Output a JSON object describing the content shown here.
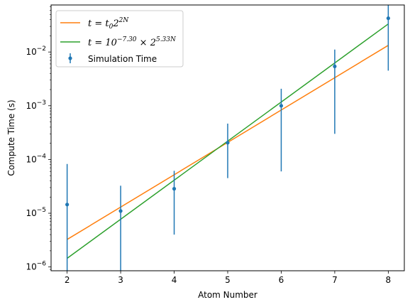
{
  "chart_data": {
    "type": "scatter",
    "xlabel": "Atom Number",
    "ylabel": "Compute Time (s)",
    "x_ticks": [
      "2",
      "3",
      "4",
      "5",
      "6",
      "7",
      "8"
    ],
    "y_scale": "log",
    "y_ticks": [
      {
        "base": "10",
        "exp": "−6"
      },
      {
        "base": "10",
        "exp": "−5"
      },
      {
        "base": "10",
        "exp": "−4"
      },
      {
        "base": "10",
        "exp": "−3"
      },
      {
        "base": "10",
        "exp": "−2"
      }
    ],
    "xlim": [
      1.7,
      8.3
    ],
    "ylim": [
      8.5e-07,
      0.075
    ],
    "grid": false,
    "legend_position": "upper-left",
    "series": [
      {
        "kind": "errorbar",
        "name": "Simulation Time",
        "color": "#1f77b4",
        "points": [
          {
            "x": 2,
            "y": 1.45e-05,
            "yerr_low": 1.45e-05,
            "yerr_high": 6.8e-05
          },
          {
            "x": 3,
            "y": 1.1e-05,
            "yerr_low": 1.1e-05,
            "yerr_high": 2.15e-05
          },
          {
            "x": 4,
            "y": 2.85e-05,
            "yerr_low": 2.45e-05,
            "yerr_high": 3.3e-05
          },
          {
            "x": 5,
            "y": 0.000205,
            "yerr_low": 0.00016,
            "yerr_high": 0.00026
          },
          {
            "x": 6,
            "y": 0.001,
            "yerr_low": 0.00094,
            "yerr_high": 0.00107
          },
          {
            "x": 7,
            "y": 0.0054,
            "yerr_low": 0.0051,
            "yerr_high": 0.0057
          },
          {
            "x": 8,
            "y": 0.0425,
            "yerr_low": 0.038,
            "yerr_high": 0.048
          }
        ]
      },
      {
        "kind": "line",
        "name_parts": {
          "lhs": "t = t",
          "sub": "0",
          "base": "2",
          "exp": "2N"
        },
        "color": "#ff7f0e",
        "x": [
          2,
          8
        ],
        "y": [
          3.25e-06,
          0.0133
        ]
      },
      {
        "kind": "line",
        "name_parts": {
          "lhs": "t = 10",
          "exp1": "−7.30",
          "mid": " × 2",
          "exp2": "5.33N"
        },
        "color": "#2ca02c",
        "x": [
          2,
          8
        ],
        "y": [
          1.45e-06,
          0.0333
        ]
      }
    ]
  }
}
